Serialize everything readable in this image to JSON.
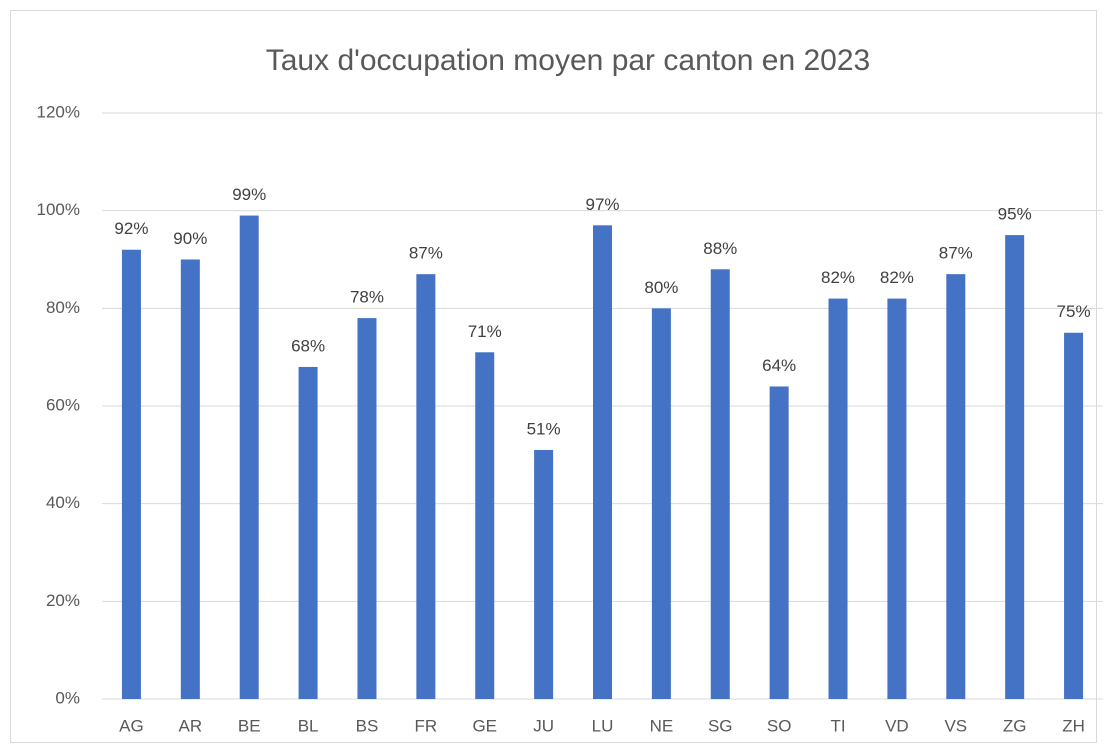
{
  "chart_data": {
    "type": "bar",
    "title": "Taux d'occupation moyen par canton en 2023",
    "categories": [
      "AG",
      "AR",
      "BE",
      "BL",
      "BS",
      "FR",
      "GE",
      "JU",
      "LU",
      "NE",
      "SG",
      "SO",
      "TI",
      "VD",
      "VS",
      "ZG",
      "ZH"
    ],
    "values": [
      92,
      90,
      99,
      68,
      78,
      87,
      71,
      51,
      97,
      80,
      88,
      64,
      82,
      82,
      87,
      95,
      75
    ],
    "value_labels": [
      "92%",
      "90%",
      "99%",
      "68%",
      "78%",
      "87%",
      "71%",
      "51%",
      "97%",
      "80%",
      "88%",
      "64%",
      "82%",
      "82%",
      "87%",
      "95%",
      "75%"
    ],
    "color": "#4472c4",
    "ylim": [
      0,
      120
    ],
    "yticks": [
      {
        "value": 0,
        "label": "0%"
      },
      {
        "value": 20,
        "label": "20%"
      },
      {
        "value": 40,
        "label": "40%"
      },
      {
        "value": 60,
        "label": "60%"
      },
      {
        "value": 80,
        "label": "80%"
      },
      {
        "value": 100,
        "label": "100%"
      },
      {
        "value": 120,
        "label": "120%"
      }
    ],
    "grid": true
  }
}
